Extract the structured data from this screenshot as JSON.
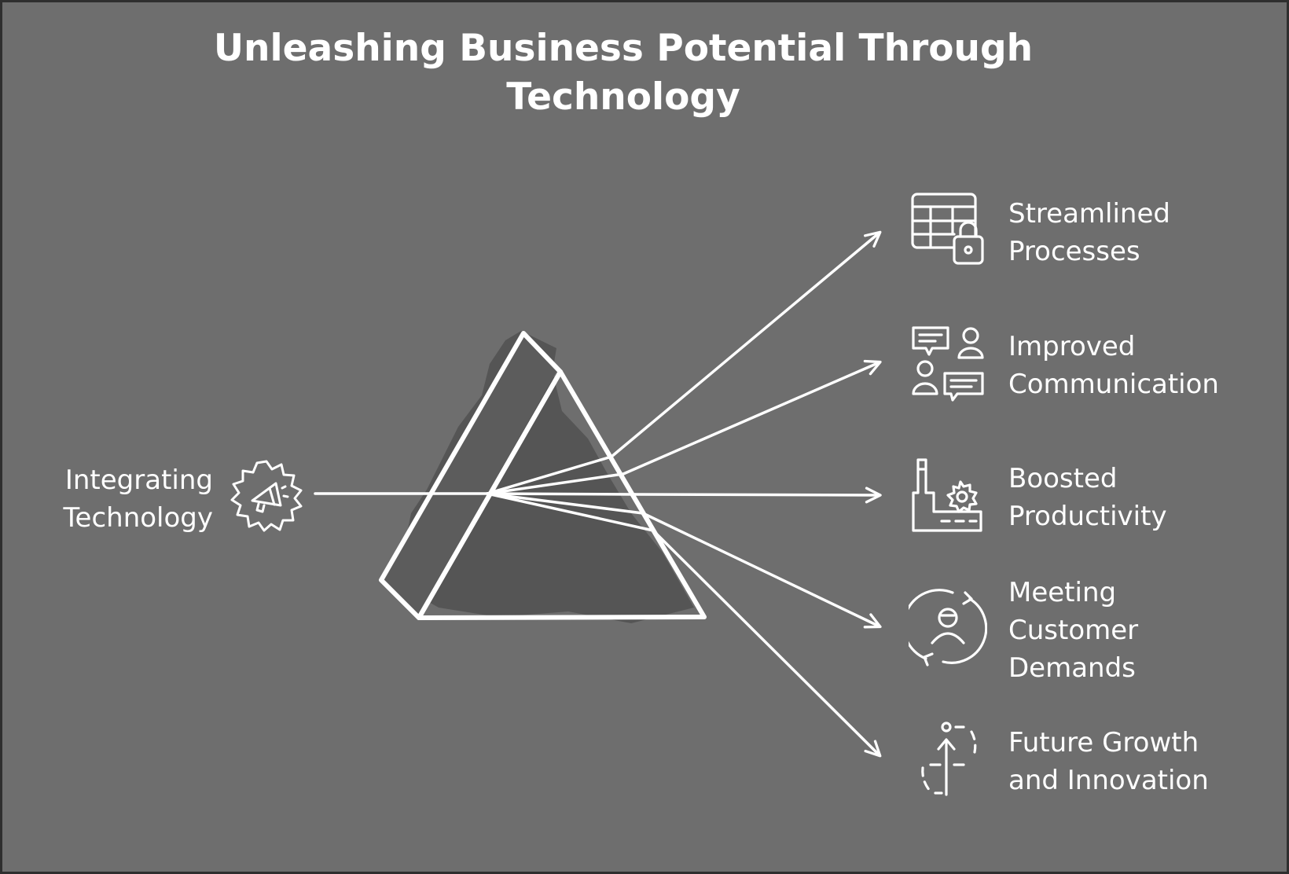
{
  "title": {
    "line1": "Unleashing Business Potential Through",
    "line2": "Technology"
  },
  "input": {
    "line1": "Integrating",
    "line2": "Technology",
    "icon": "gear-megaphone-icon"
  },
  "outputs": [
    {
      "lines": [
        "Streamlined",
        "Processes"
      ],
      "icon": "table-lock-icon"
    },
    {
      "lines": [
        "Improved",
        "Communication"
      ],
      "icon": "people-chat-icon"
    },
    {
      "lines": [
        "Boosted",
        "Productivity"
      ],
      "icon": "factory-gear-icon"
    },
    {
      "lines": [
        "Meeting",
        "Customer",
        "Demands"
      ],
      "icon": "customer-cycle-icon"
    },
    {
      "lines": [
        "Future Growth",
        "and Innovation"
      ],
      "icon": "growth-arrow-icon"
    }
  ],
  "colors": {
    "background": "#6e6e6e",
    "border": "#2e2e2e",
    "stroke": "#ffffff",
    "prism_shadow": "#555555"
  }
}
